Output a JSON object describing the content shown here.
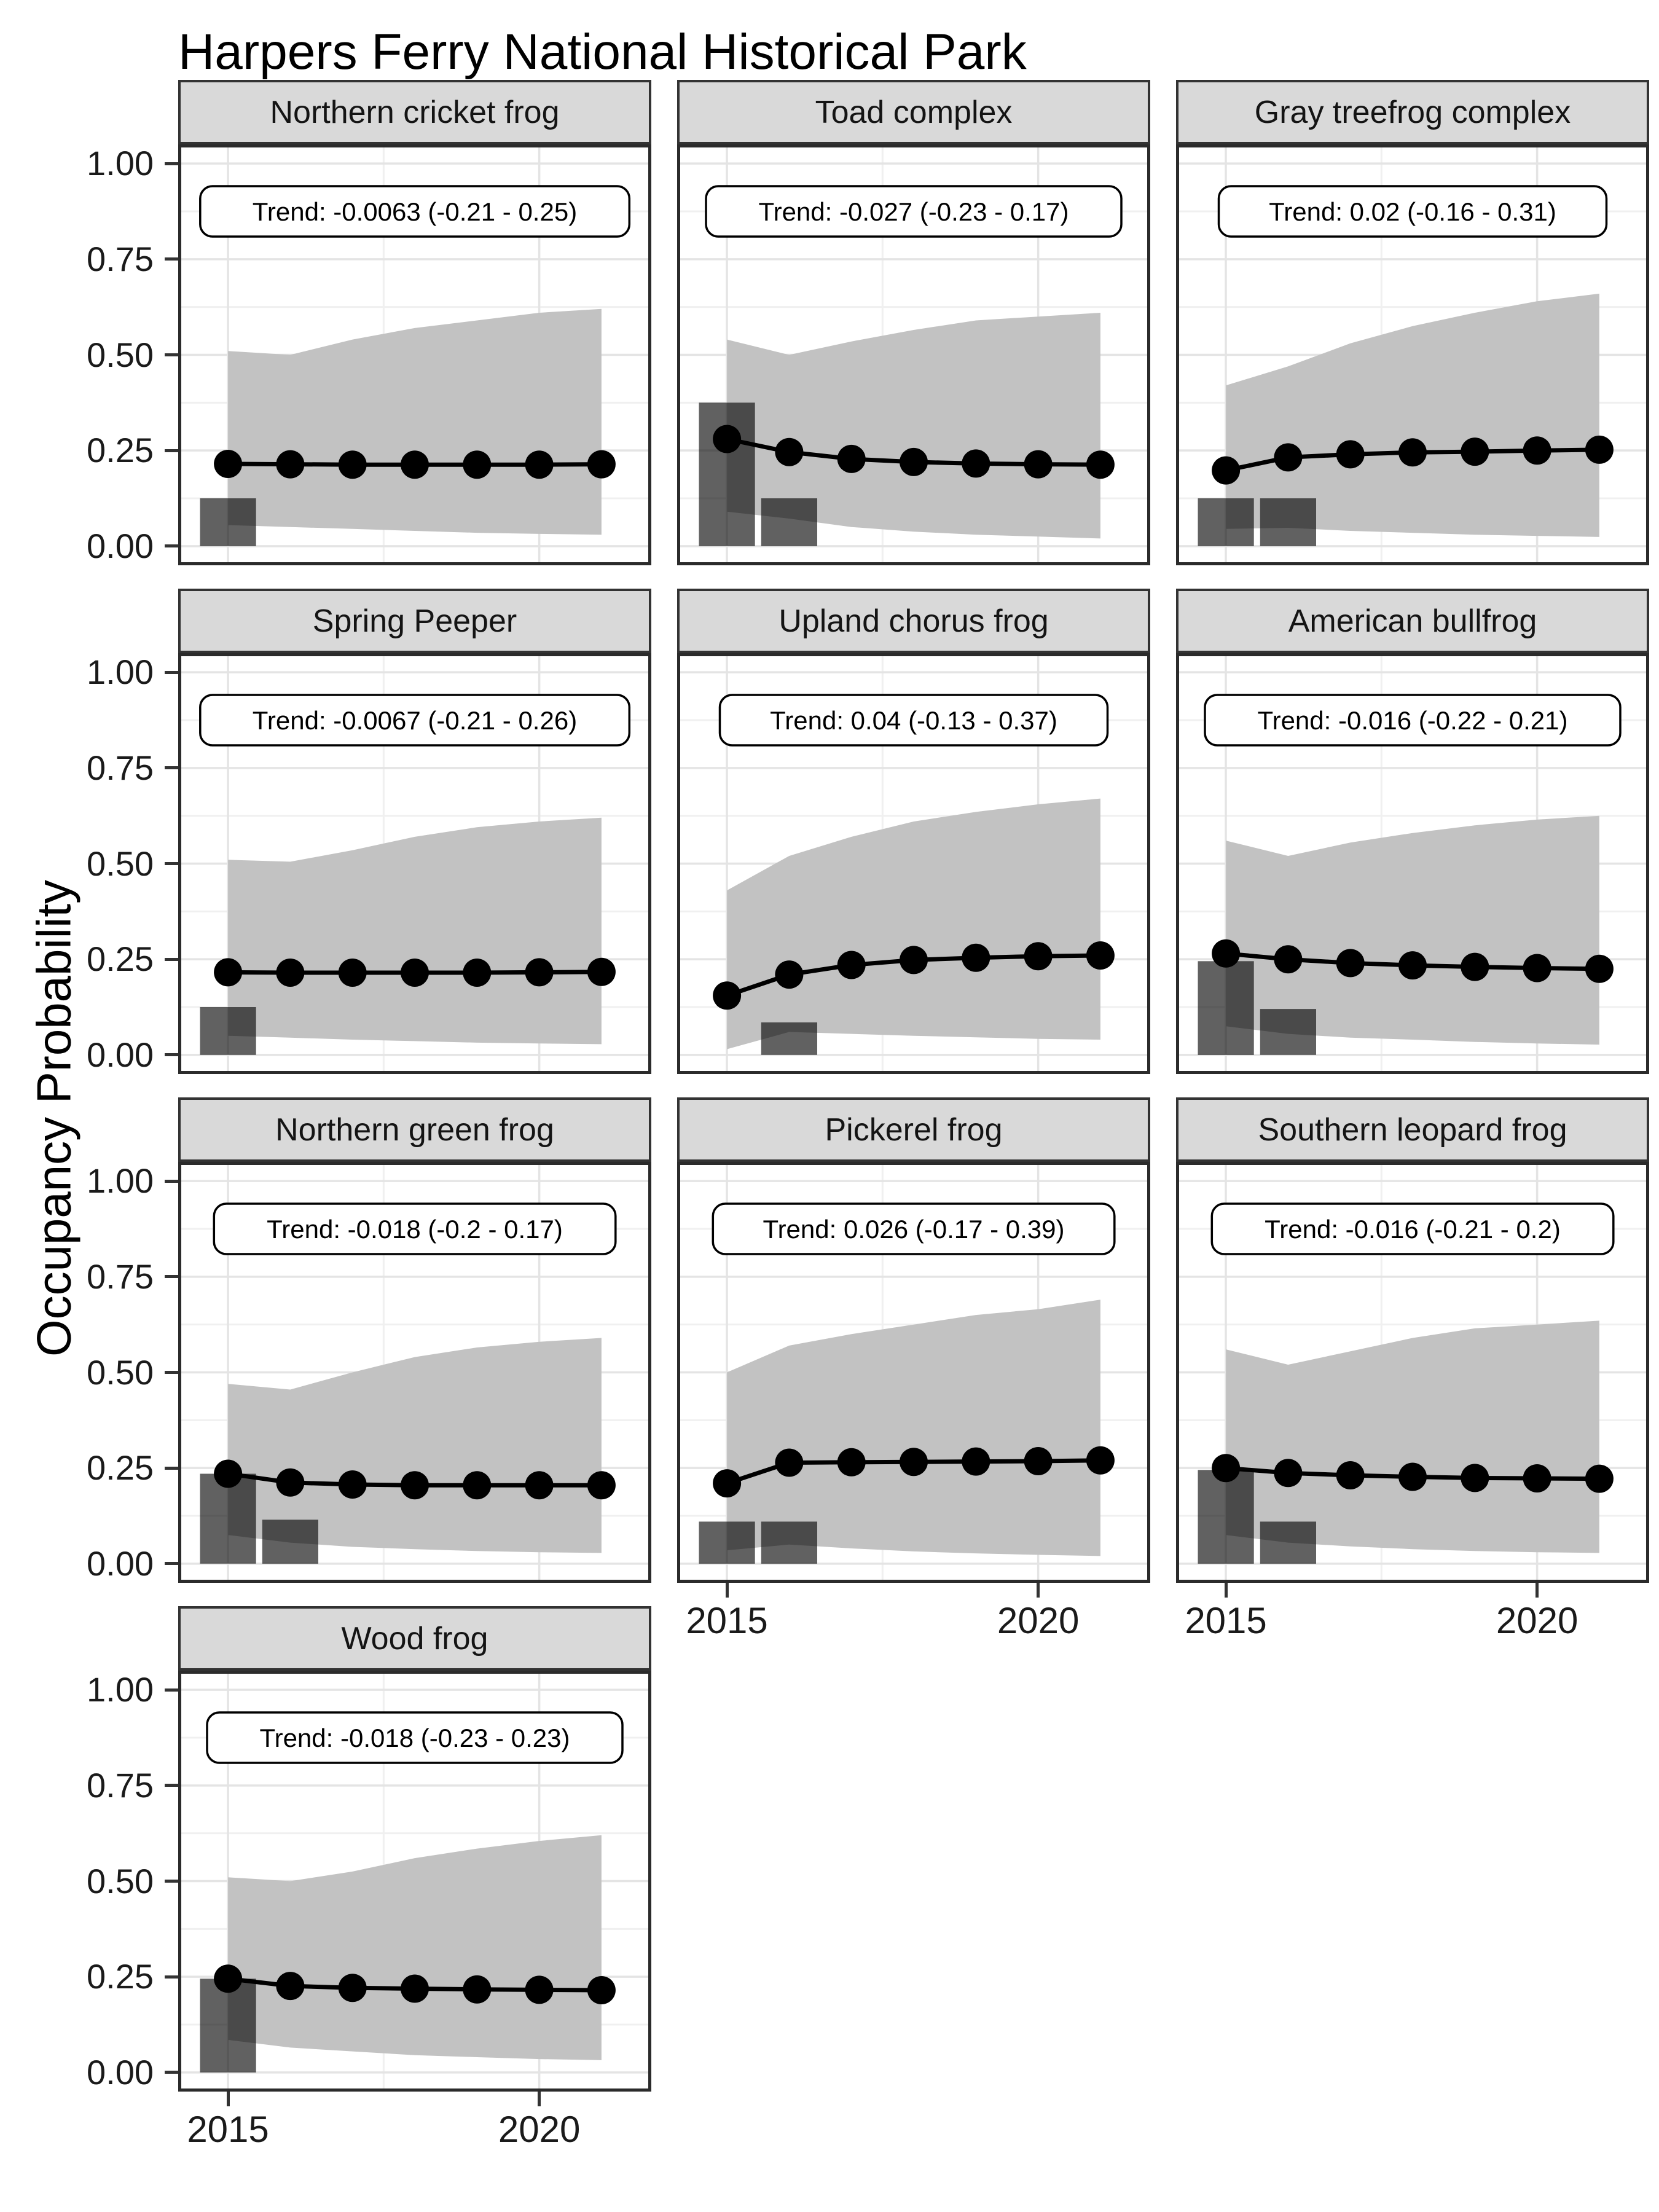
{
  "title": "Harpers Ferry National Historical Park",
  "axes": {
    "y_title": "Occupancy Probability",
    "y_ticks": [
      "1.00",
      "0.75",
      "0.50",
      "0.25",
      "0.00"
    ],
    "y_tick_values": [
      1.0,
      0.75,
      0.5,
      0.25,
      0.0
    ],
    "x_ticks": [
      "2015",
      "2020"
    ],
    "x_tick_values": [
      2015,
      2020
    ]
  },
  "style": {
    "ribbon_color": "#c2c2c2",
    "bar_color": "rgba(0,0,0,0.62)",
    "line_color": "#000000",
    "point_color": "#000000",
    "strip_fill": "#d9d9d9",
    "strip_border": "#333333",
    "panel_border": "#2b2b2b",
    "grid_major": "#e4e4e4",
    "grid_minor": "#f0f0f0",
    "background": "#ffffff"
  },
  "chart_data": {
    "type": "line",
    "description": "Faceted occupancy-probability trends (estimate line with points, 95% confidence ribbon, and dark detection bars) for 10 amphibian taxa, 2015-2021",
    "x": [
      2015,
      2016,
      2017,
      2018,
      2019,
      2020,
      2021
    ],
    "xlim": [
      2014.2,
      2021.8
    ],
    "ylim": [
      -0.05,
      1.05
    ],
    "panels": [
      {
        "title": "Northern cricket frog",
        "trend_label": "Trend: -0.0063 (-0.21 - 0.25)",
        "estimate": [
          0.215,
          0.214,
          0.213,
          0.213,
          0.213,
          0.213,
          0.214
        ],
        "upper": [
          0.51,
          0.5,
          0.54,
          0.57,
          0.59,
          0.61,
          0.62
        ],
        "lower": [
          0.055,
          0.05,
          0.045,
          0.04,
          0.035,
          0.032,
          0.03
        ],
        "bars": [
          {
            "year": 2015,
            "height": 0.125
          }
        ],
        "row": 0,
        "col": 0,
        "show_y_axis": true,
        "show_x_axis": false
      },
      {
        "title": "Toad complex",
        "trend_label": "Trend: -0.027 (-0.23 - 0.17)",
        "estimate": [
          0.28,
          0.246,
          0.228,
          0.22,
          0.216,
          0.214,
          0.213
        ],
        "upper": [
          0.54,
          0.5,
          0.535,
          0.565,
          0.59,
          0.6,
          0.61
        ],
        "lower": [
          0.09,
          0.072,
          0.05,
          0.038,
          0.03,
          0.025,
          0.02
        ],
        "bars": [
          {
            "year": 2015,
            "height": 0.375
          },
          {
            "year": 2016,
            "height": 0.125
          }
        ],
        "row": 0,
        "col": 1,
        "show_y_axis": false,
        "show_x_axis": false
      },
      {
        "title": "Gray treefrog complex",
        "trend_label": "Trend: 0.02 (-0.16 - 0.31)",
        "estimate": [
          0.198,
          0.232,
          0.24,
          0.245,
          0.247,
          0.25,
          0.252
        ],
        "upper": [
          0.42,
          0.47,
          0.53,
          0.575,
          0.61,
          0.64,
          0.66
        ],
        "lower": [
          0.045,
          0.048,
          0.04,
          0.035,
          0.03,
          0.027,
          0.024
        ],
        "bars": [
          {
            "year": 2015,
            "height": 0.125
          },
          {
            "year": 2016,
            "height": 0.125
          }
        ],
        "row": 0,
        "col": 2,
        "show_y_axis": false,
        "show_x_axis": false
      },
      {
        "title": "Spring Peeper",
        "trend_label": "Trend: -0.0067 (-0.21 - 0.26)",
        "estimate": [
          0.216,
          0.215,
          0.215,
          0.215,
          0.215,
          0.216,
          0.217
        ],
        "upper": [
          0.51,
          0.505,
          0.535,
          0.57,
          0.595,
          0.61,
          0.62
        ],
        "lower": [
          0.05,
          0.045,
          0.04,
          0.036,
          0.032,
          0.03,
          0.028
        ],
        "bars": [
          {
            "year": 2015,
            "height": 0.125
          }
        ],
        "row": 1,
        "col": 0,
        "show_y_axis": true,
        "show_x_axis": false
      },
      {
        "title": "Upland chorus frog",
        "trend_label": "Trend: 0.04 (-0.13 - 0.37)",
        "estimate": [
          0.155,
          0.21,
          0.235,
          0.248,
          0.254,
          0.258,
          0.26
        ],
        "upper": [
          0.43,
          0.52,
          0.57,
          0.61,
          0.635,
          0.655,
          0.67
        ],
        "lower": [
          0.015,
          0.06,
          0.055,
          0.05,
          0.046,
          0.042,
          0.04
        ],
        "bars": [
          {
            "year": 2016,
            "height": 0.085
          }
        ],
        "row": 1,
        "col": 1,
        "show_y_axis": false,
        "show_x_axis": false
      },
      {
        "title": "American bullfrog",
        "trend_label": "Trend: -0.016 (-0.22 - 0.21)",
        "estimate": [
          0.265,
          0.25,
          0.24,
          0.234,
          0.23,
          0.227,
          0.225
        ],
        "upper": [
          0.56,
          0.52,
          0.555,
          0.58,
          0.6,
          0.615,
          0.625
        ],
        "lower": [
          0.075,
          0.055,
          0.045,
          0.04,
          0.034,
          0.03,
          0.027
        ],
        "bars": [
          {
            "year": 2015,
            "height": 0.245
          },
          {
            "year": 2016,
            "height": 0.12
          }
        ],
        "row": 1,
        "col": 2,
        "show_y_axis": false,
        "show_x_axis": false
      },
      {
        "title": "Northern green frog",
        "trend_label": "Trend: -0.018 (-0.2 - 0.17)",
        "estimate": [
          0.235,
          0.212,
          0.207,
          0.205,
          0.205,
          0.205,
          0.205
        ],
        "upper": [
          0.47,
          0.455,
          0.5,
          0.54,
          0.565,
          0.58,
          0.59
        ],
        "lower": [
          0.075,
          0.055,
          0.044,
          0.038,
          0.033,
          0.03,
          0.028
        ],
        "bars": [
          {
            "year": 2015,
            "height": 0.235
          },
          {
            "year": 2016,
            "height": 0.115
          }
        ],
        "row": 2,
        "col": 0,
        "show_y_axis": true,
        "show_x_axis": false
      },
      {
        "title": "Pickerel frog",
        "trend_label": "Trend: 0.026 (-0.17 - 0.39)",
        "estimate": [
          0.21,
          0.264,
          0.265,
          0.266,
          0.267,
          0.268,
          0.27
        ],
        "upper": [
          0.5,
          0.57,
          0.6,
          0.625,
          0.65,
          0.665,
          0.69
        ],
        "lower": [
          0.035,
          0.05,
          0.04,
          0.032,
          0.027,
          0.023,
          0.02
        ],
        "bars": [
          {
            "year": 2015,
            "height": 0.11
          },
          {
            "year": 2016,
            "height": 0.11
          }
        ],
        "row": 2,
        "col": 1,
        "show_y_axis": false,
        "show_x_axis": true
      },
      {
        "title": "Southern leopard frog",
        "trend_label": "Trend: -0.016 (-0.21 - 0.2)",
        "estimate": [
          0.25,
          0.237,
          0.231,
          0.227,
          0.224,
          0.223,
          0.222
        ],
        "upper": [
          0.56,
          0.52,
          0.555,
          0.59,
          0.615,
          0.625,
          0.635
        ],
        "lower": [
          0.075,
          0.055,
          0.045,
          0.038,
          0.033,
          0.03,
          0.028
        ],
        "bars": [
          {
            "year": 2015,
            "height": 0.245
          },
          {
            "year": 2016,
            "height": 0.11
          }
        ],
        "row": 2,
        "col": 2,
        "show_y_axis": false,
        "show_x_axis": true
      },
      {
        "title": "Wood frog",
        "trend_label": "Trend: -0.018 (-0.23 - 0.23)",
        "estimate": [
          0.245,
          0.226,
          0.221,
          0.219,
          0.217,
          0.216,
          0.215
        ],
        "upper": [
          0.51,
          0.5,
          0.525,
          0.56,
          0.585,
          0.605,
          0.62
        ],
        "lower": [
          0.085,
          0.065,
          0.055,
          0.045,
          0.04,
          0.035,
          0.032
        ],
        "bars": [
          {
            "year": 2015,
            "height": 0.245
          }
        ],
        "row": 3,
        "col": 0,
        "show_y_axis": true,
        "show_x_axis": true
      }
    ]
  }
}
